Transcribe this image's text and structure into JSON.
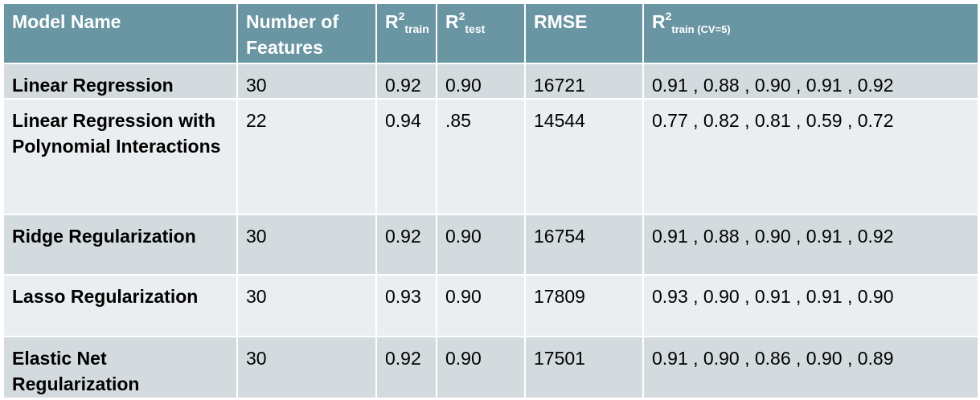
{
  "table": {
    "headers": {
      "model_name": "Model Name",
      "num_features": "Number of Features",
      "r2_train_base": "R",
      "r2_train_sup": "2",
      "r2_train_sub": "train",
      "r2_test_base": "R",
      "r2_test_sup": "2",
      "r2_test_sub": "test",
      "rmse": "RMSE",
      "r2_cv_base": "R",
      "r2_cv_sup": "2",
      "r2_cv_sub": "train (CV=5)"
    },
    "rows": [
      {
        "model": "Linear Regression",
        "features": "30",
        "r2_train": "0.92",
        "r2_test": "0.90",
        "rmse": "16721",
        "cv": "0.91 , 0.88 , 0.90 , 0.91 , 0.92"
      },
      {
        "model": "Linear Regression with Polynomial Interactions",
        "features": "22",
        "r2_train": "0.94",
        "r2_test": ".85",
        "rmse": "14544",
        "cv": "0.77 , 0.82 , 0.81 , 0.59 , 0.72"
      },
      {
        "model": "Ridge Regularization",
        "features": "30",
        "r2_train": "0.92",
        "r2_test": "0.90",
        "rmse": "16754",
        "cv": "0.91 , 0.88 , 0.90 , 0.91 , 0.92"
      },
      {
        "model": "Lasso Regularization",
        "features": "30",
        "r2_train": "0.93",
        "r2_test": "0.90",
        "rmse": "17809",
        "cv": "0.93 , 0.90 , 0.91 , 0.91 , 0.90"
      },
      {
        "model": "Elastic Net Regularization",
        "features": "30",
        "r2_train": "0.92",
        "r2_test": "0.90",
        "rmse": "17501",
        "cv": "0.91 , 0.90 , 0.86 , 0.90 , 0.89"
      }
    ]
  }
}
